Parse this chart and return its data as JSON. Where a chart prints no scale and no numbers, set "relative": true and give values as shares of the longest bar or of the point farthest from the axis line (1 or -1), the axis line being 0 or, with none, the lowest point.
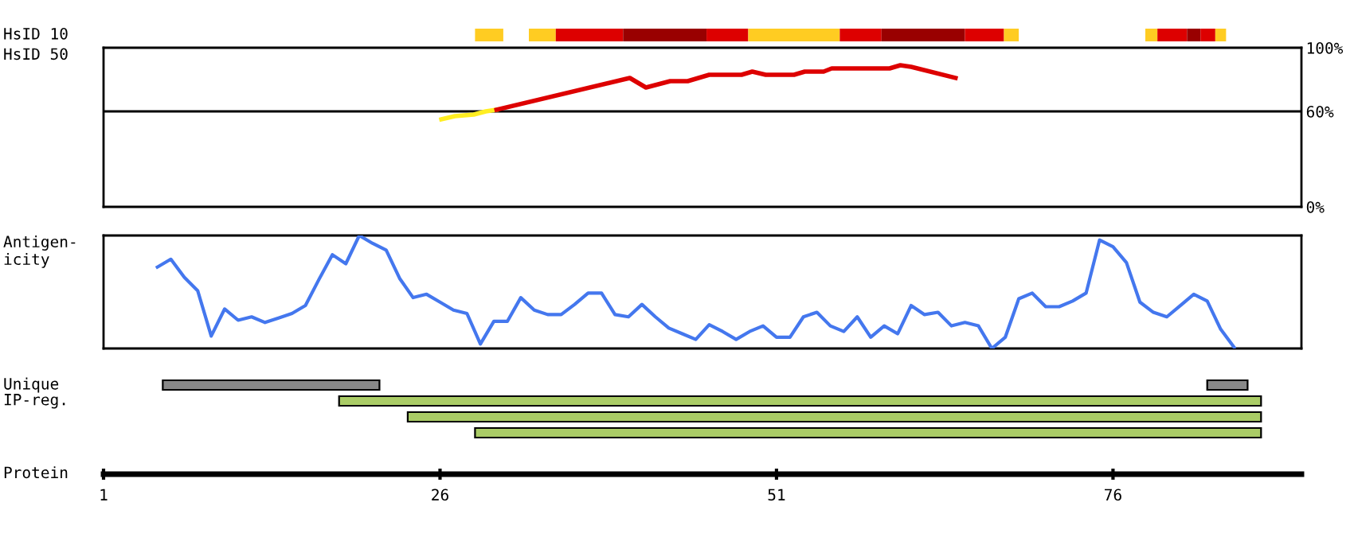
{
  "chart_data": [
    {
      "type": "bar",
      "orientation": "horizontal",
      "categories": [
        "HsID 10"
      ],
      "xlim": [
        1,
        90
      ],
      "tick_labels": "y",
      "series": [
        {
          "color": "#ffcc22",
          "base": [
            28.6
          ],
          "values": [
            2.1
          ]
        },
        {
          "color": "#ffcc22",
          "base": [
            32.6
          ],
          "values": [
            2.0
          ]
        },
        {
          "color": "#dd0000",
          "base": [
            34.6
          ],
          "values": [
            5.0
          ]
        },
        {
          "color": "#990000",
          "base": [
            39.6
          ],
          "values": [
            6.2
          ]
        },
        {
          "color": "#dd0000",
          "base": [
            45.8
          ],
          "values": [
            3.1
          ]
        },
        {
          "color": "#ffcc22",
          "base": [
            48.9
          ],
          "values": [
            6.8
          ]
        },
        {
          "color": "#dd0000",
          "base": [
            55.7
          ],
          "values": [
            3.1
          ]
        },
        {
          "color": "#990000",
          "base": [
            58.8
          ],
          "values": [
            6.2
          ]
        },
        {
          "color": "#dd0000",
          "base": [
            65.0
          ],
          "values": [
            2.9
          ]
        },
        {
          "color": "#ffcc22",
          "base": [
            67.9
          ],
          "values": [
            1.1
          ]
        },
        {
          "color": "#ffcc22",
          "base": [
            78.4
          ],
          "values": [
            0.9
          ]
        },
        {
          "color": "#dd0000",
          "base": [
            79.3
          ],
          "values": [
            2.2
          ]
        },
        {
          "color": "#990000",
          "base": [
            81.5
          ],
          "values": [
            1.0
          ]
        },
        {
          "color": "#dd0000",
          "base": [
            82.5
          ],
          "values": [
            1.1
          ]
        },
        {
          "color": "#ffcc22",
          "base": [
            83.6
          ],
          "values": [
            0.8
          ]
        }
      ]
    },
    {
      "type": "line",
      "ylabel": "HsID 50",
      "xlim": [
        1,
        90
      ],
      "ylim": [
        0,
        100
      ],
      "yticks": [
        {
          "value": 0,
          "label": "0%"
        },
        {
          "value": 60,
          "label": "60%"
        },
        {
          "value": 100,
          "label": "100%"
        }
      ],
      "tick_labels": "y",
      "marker": "none",
      "line_style": "solid",
      "ref_lines": [
        {
          "axis": "y",
          "value": 60,
          "color": "#000000"
        }
      ],
      "series": [
        {
          "color": "#ffee22",
          "x": [
            26.1,
            27.1,
            28.5,
            29.4,
            30.2
          ],
          "values": [
            55,
            57,
            58,
            60,
            61
          ]
        },
        {
          "color": "#dd0000",
          "x": [
            30.2,
            40.1,
            41.3,
            43.1,
            44.4,
            46.0,
            48.4,
            49.2,
            50.2,
            52.3,
            53.1,
            54.5,
            55.1,
            59.4,
            60.2,
            61.0,
            64.3
          ],
          "values": [
            61,
            81,
            75,
            79,
            79,
            83,
            83,
            85,
            83,
            83,
            85,
            85,
            87,
            87,
            89,
            88,
            81
          ]
        }
      ]
    },
    {
      "type": "line",
      "ylabel": "Antigen-\nicity",
      "relative": true,
      "xlim": [
        1,
        90
      ],
      "tick_labels": false,
      "marker": "none",
      "line_style": "solid",
      "series": [
        {
          "color": "#4477ee",
          "x": [
            5,
            6,
            7,
            8,
            9,
            10,
            11,
            12,
            13,
            14,
            15,
            16,
            17,
            18,
            19,
            20,
            21,
            22,
            23,
            24,
            25,
            26,
            27,
            28,
            29,
            30,
            31,
            32,
            33,
            34,
            35,
            36,
            37,
            38,
            39,
            40,
            41,
            42,
            43,
            44,
            45,
            46,
            47,
            48,
            49,
            50,
            51,
            52,
            53,
            54,
            55,
            56,
            57,
            58,
            59,
            60,
            61,
            62,
            63,
            64,
            65,
            66,
            67,
            68,
            69,
            70,
            71,
            72,
            73,
            74,
            75,
            76,
            77,
            78,
            79,
            80,
            81,
            82,
            83,
            84,
            85
          ],
          "values": [
            0.72,
            0.79,
            0.63,
            0.51,
            0.11,
            0.35,
            0.25,
            0.28,
            0.23,
            0.27,
            0.31,
            0.38,
            0.61,
            0.83,
            0.75,
            1,
            0.93,
            0.87,
            0.62,
            0.45,
            0.48,
            0.41,
            0.34,
            0.31,
            0.04,
            0.24,
            0.24,
            0.45,
            0.34,
            0.3,
            0.3,
            0.39,
            0.49,
            0.49,
            0.3,
            0.28,
            0.39,
            0.28,
            0.18,
            0.13,
            0.08,
            0.21,
            0.15,
            0.08,
            0.15,
            0.2,
            0.1,
            0.1,
            0.28,
            0.32,
            0.2,
            0.15,
            0.28,
            0.1,
            0.2,
            0.13,
            0.38,
            0.3,
            0.32,
            0.2,
            0.23,
            0.2,
            0,
            0.1,
            0.44,
            0.49,
            0.37,
            0.37,
            0.42,
            0.49,
            0.96,
            0.9,
            0.76,
            0.41,
            0.32,
            0.28,
            0.38,
            0.48,
            0.42,
            0.17,
            0.01
          ]
        }
      ]
    },
    {
      "type": "bar",
      "orientation": "horizontal",
      "categories": [
        "Unique",
        "IP-reg.",
        null,
        null
      ],
      "xlabel": "Protein",
      "xlim": [
        1,
        90
      ],
      "xticks": [
        1,
        26,
        51,
        76
      ],
      "series": [
        {
          "color": "#888888",
          "base": [
            5.4,
            null,
            null,
            null
          ],
          "values": [
            16.1,
            null,
            null,
            null
          ]
        },
        {
          "color": "#888888",
          "base": [
            83.0,
            null,
            null,
            null
          ],
          "values": [
            3.0,
            null,
            null,
            null
          ]
        },
        {
          "color": "#aacc66",
          "base": [
            null,
            18.5,
            23.6,
            28.6
          ],
          "values": [
            null,
            68.5,
            63.4,
            58.4
          ]
        }
      ]
    }
  ]
}
